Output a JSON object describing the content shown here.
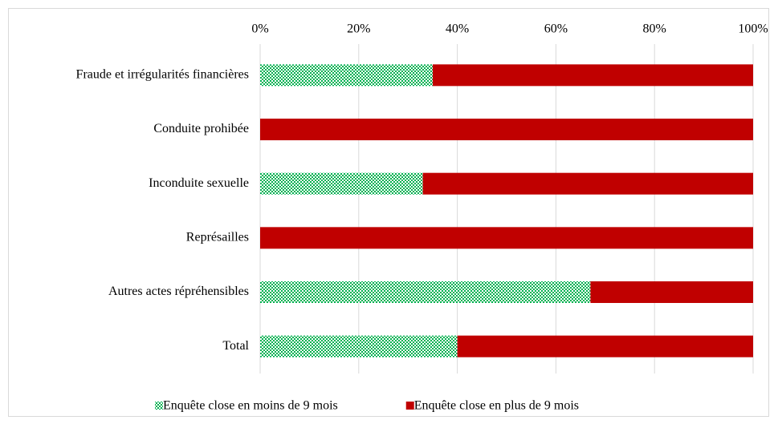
{
  "chart_data": {
    "type": "stacked_barh",
    "categories": [
      "Fraude et irrégularités financières",
      "Conduite prohibée",
      "Inconduite sexuelle",
      "Représailles",
      "Autres actes répréhensibles",
      "Total"
    ],
    "series": [
      {
        "name": "Enquête close en moins de 9 mois",
        "color": "#00b050",
        "pattern": "checker",
        "values": [
          35,
          0,
          33,
          0,
          67,
          40
        ]
      },
      {
        "name": "Enquête close en plus de 9 mois",
        "color": "#c00000",
        "values": [
          65,
          100,
          67,
          100,
          33,
          60
        ]
      }
    ],
    "xlim": [
      0,
      100
    ],
    "xticks": [
      {
        "value": 0,
        "label": "0%"
      },
      {
        "value": 20,
        "label": "20%"
      },
      {
        "value": 40,
        "label": "40%"
      },
      {
        "value": 60,
        "label": "60%"
      },
      {
        "value": 80,
        "label": "80%"
      },
      {
        "value": 100,
        "label": "100%"
      }
    ],
    "grid": true,
    "legend": "bottom"
  }
}
